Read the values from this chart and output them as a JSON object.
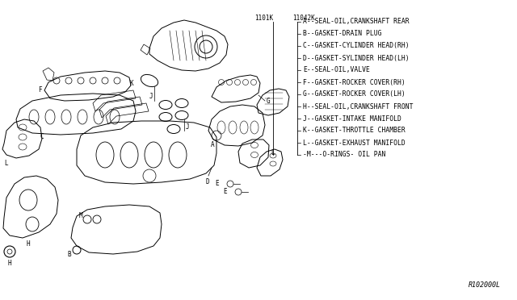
{
  "background_color": "#ffffff",
  "fig_width": 6.4,
  "fig_height": 3.72,
  "dpi": 100,
  "legend_items": [
    "A--SEAL-OIL,CRANKSHAFT REAR",
    "B--GASKET-DRAIN PLUG",
    "C--GASKET-CYLINDER HEAD(RH)",
    "D--GASKET-SYLINDER HEAD(LH)",
    "E--SEAL-OIL,VALVE",
    "F--GASKET-ROCKER COVER(RH)",
    "G--GASKET-ROCKER COVER(LH)",
    "H--SEAL-OIL,CRANKSHAFT FRONT",
    "J--GASKET-INTAKE MANIFOLD",
    "K--GASKET-THROTTLE CHAMBER",
    "L--GASKET-EXHAUST MANIFOLD",
    "-M---O-RINGS- OIL PAN"
  ],
  "watermark": "R102000L",
  "header_labels": [
    "1101K",
    "11042K"
  ]
}
